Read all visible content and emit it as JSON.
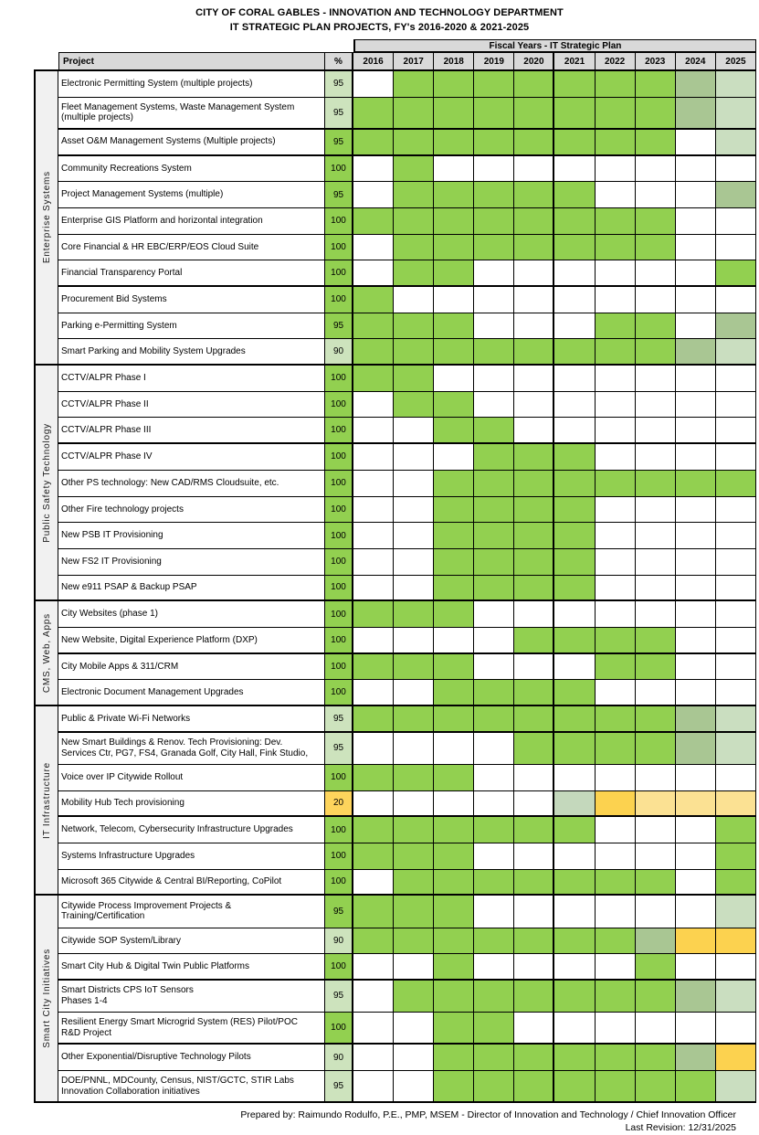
{
  "title": {
    "line1": "CITY OF CORAL GABLES - INNOVATION AND TECHNOLOGY DEPARTMENT",
    "line2": "IT STRATEGIC PLAN PROJECTS, FY's 2016-2020 & 2021-2025"
  },
  "header": {
    "fiscal_band": "Fiscal Years - IT Strategic Plan",
    "project_col": "Project",
    "pct_col": "%",
    "years": [
      "2016",
      "2017",
      "2018",
      "2019",
      "2020",
      "2021",
      "2022",
      "2023",
      "2024",
      "2025"
    ]
  },
  "colors": {
    "cell": {
      "g": "#92d050",
      "m": "#a9c693",
      "p": "#cadec0",
      "gg": "#c4d8bc",
      "y": "#fcd24f",
      "py": "#fbe193"
    },
    "pct": {
      "green": "#92d050",
      "pale": "#cde3bd",
      "yellow": "#fdd45c"
    },
    "header_bg": "#d9d9d9",
    "group_bg": "#f1f1f1",
    "grid_line": "#000000"
  },
  "groups": [
    {
      "label": "Enterprise Systems",
      "rows": [
        {
          "name": "Electronic Permitting System (multiple projects)",
          "pct": "95",
          "pct_color": "pale",
          "two_line": false,
          "thick_bottom": false,
          "cells": [
            "",
            "g",
            "g",
            "g",
            "g",
            "g",
            "g",
            "g",
            "m",
            "p"
          ]
        },
        {
          "name": "Fleet Management Systems, Waste Management System\n(multiple projects)",
          "pct": "95",
          "pct_color": "pale",
          "two_line": true,
          "thick_bottom": true,
          "cells": [
            "g",
            "g",
            "g",
            "g",
            "g",
            "g",
            "g",
            "g",
            "m",
            "p"
          ]
        },
        {
          "name": "Asset O&M Management Systems (Multiple projects)",
          "pct": "95",
          "pct_color": "green",
          "two_line": false,
          "thick_bottom": true,
          "cells": [
            "g",
            "g",
            "g",
            "g",
            "g",
            "g",
            "g",
            "g",
            "",
            "p"
          ]
        },
        {
          "name": "Community Recreations System",
          "pct": "100",
          "pct_color": "green",
          "two_line": false,
          "thick_bottom": false,
          "cells": [
            "",
            "g",
            "",
            "",
            "",
            "",
            "",
            "",
            "",
            ""
          ]
        },
        {
          "name": "Project Management Systems (multiple)",
          "pct": "95",
          "pct_color": "green",
          "two_line": false,
          "thick_bottom": false,
          "cells": [
            "",
            "g",
            "g",
            "g",
            "g",
            "g",
            "",
            "",
            "",
            "m"
          ]
        },
        {
          "name": "Enterprise GIS Platform and horizontal integration",
          "pct": "100",
          "pct_color": "green",
          "two_line": false,
          "thick_bottom": false,
          "cells": [
            "g",
            "g",
            "g",
            "g",
            "g",
            "g",
            "g",
            "g",
            "",
            ""
          ]
        },
        {
          "name": "Core Financial & HR EBC/ERP/EOS Cloud Suite",
          "pct": "100",
          "pct_color": "green",
          "two_line": false,
          "thick_bottom": false,
          "cells": [
            "",
            "g",
            "g",
            "g",
            "g",
            "g",
            "g",
            "g",
            "",
            ""
          ]
        },
        {
          "name": "Financial Transparency Portal",
          "pct": "100",
          "pct_color": "green",
          "two_line": false,
          "thick_bottom": true,
          "cells": [
            "",
            "g",
            "g",
            "",
            "",
            "",
            "",
            "",
            "",
            "g"
          ]
        },
        {
          "name": "Procurement Bid Systems",
          "pct": "100",
          "pct_color": "green",
          "two_line": false,
          "thick_bottom": false,
          "cells": [
            "g",
            "",
            "",
            "",
            "",
            "",
            "",
            "",
            "",
            ""
          ]
        },
        {
          "name": "Parking e-Permitting System",
          "pct": "95",
          "pct_color": "green",
          "two_line": false,
          "thick_bottom": false,
          "cells": [
            "g",
            "g",
            "g",
            "",
            "",
            "",
            "g",
            "g",
            "",
            "m"
          ]
        },
        {
          "name": "Smart Parking and Mobility System Upgrades",
          "pct": "90",
          "pct_color": "pale",
          "two_line": false,
          "thick_bottom": true,
          "cells": [
            "g",
            "g",
            "g",
            "g",
            "g",
            "g",
            "g",
            "g",
            "m",
            "p"
          ]
        }
      ]
    },
    {
      "label": "Public Safety Technology",
      "rows": [
        {
          "name": "CCTV/ALPR Phase I",
          "pct": "100",
          "pct_color": "green",
          "two_line": false,
          "thick_bottom": false,
          "cells": [
            "g",
            "g",
            "",
            "",
            "",
            "",
            "",
            "",
            "",
            ""
          ]
        },
        {
          "name": "CCTV/ALPR Phase II",
          "pct": "100",
          "pct_color": "green",
          "two_line": false,
          "thick_bottom": false,
          "cells": [
            "",
            "g",
            "g",
            "",
            "",
            "",
            "",
            "",
            "",
            ""
          ]
        },
        {
          "name": "CCTV/ALPR Phase III",
          "pct": "100",
          "pct_color": "green",
          "two_line": false,
          "thick_bottom": true,
          "cells": [
            "",
            "",
            "g",
            "g",
            "",
            "",
            "",
            "",
            "",
            ""
          ]
        },
        {
          "name": "CCTV/ALPR Phase IV",
          "pct": "100",
          "pct_color": "green",
          "two_line": false,
          "thick_bottom": false,
          "cells": [
            "",
            "",
            "",
            "g",
            "g",
            "g",
            "",
            "",
            "",
            ""
          ]
        },
        {
          "name": "Other PS technology: New CAD/RMS Cloudsuite, etc.",
          "pct": "100",
          "pct_color": "green",
          "two_line": false,
          "thick_bottom": false,
          "cells": [
            "",
            "",
            "g",
            "g",
            "g",
            "g",
            "g",
            "g",
            "g",
            "g"
          ]
        },
        {
          "name": "Other Fire technology projects",
          "pct": "100",
          "pct_color": "green",
          "two_line": false,
          "thick_bottom": false,
          "cells": [
            "",
            "",
            "g",
            "g",
            "g",
            "g",
            "",
            "",
            "",
            ""
          ]
        },
        {
          "name": "New PSB IT Provisioning",
          "pct": "100",
          "pct_color": "green",
          "two_line": false,
          "thick_bottom": false,
          "cells": [
            "",
            "",
            "g",
            "g",
            "g",
            "g",
            "",
            "",
            "",
            ""
          ]
        },
        {
          "name": "New FS2 IT Provisioning",
          "pct": "100",
          "pct_color": "green",
          "two_line": false,
          "thick_bottom": false,
          "cells": [
            "",
            "",
            "g",
            "g",
            "g",
            "g",
            "",
            "",
            "",
            ""
          ]
        },
        {
          "name": "New e911 PSAP & Backup PSAP",
          "pct": "100",
          "pct_color": "green",
          "two_line": false,
          "thick_bottom": true,
          "cells": [
            "",
            "",
            "g",
            "g",
            "g",
            "g",
            "",
            "",
            "",
            ""
          ]
        }
      ]
    },
    {
      "label": "CMS, Web, Apps",
      "rows": [
        {
          "name": "City Websites (phase 1)",
          "pct": "100",
          "pct_color": "green",
          "two_line": false,
          "thick_bottom": false,
          "cells": [
            "g",
            "g",
            "g",
            "",
            "",
            "",
            "",
            "",
            "",
            ""
          ]
        },
        {
          "name": "New Website, Digital Experience Platform (DXP)",
          "pct": "100",
          "pct_color": "green",
          "two_line": false,
          "thick_bottom": true,
          "cells": [
            "",
            "",
            "",
            "",
            "g",
            "g",
            "g",
            "g",
            "",
            ""
          ]
        },
        {
          "name": "City Mobile Apps & 311/CRM",
          "pct": "100",
          "pct_color": "green",
          "two_line": false,
          "thick_bottom": false,
          "cells": [
            "g",
            "g",
            "g",
            "",
            "",
            "",
            "g",
            "g",
            "",
            ""
          ]
        },
        {
          "name": "Electronic Document Management Upgrades",
          "pct": "100",
          "pct_color": "green",
          "two_line": false,
          "thick_bottom": true,
          "cells": [
            "",
            "",
            "g",
            "g",
            "g",
            "g",
            "",
            "",
            "",
            ""
          ]
        }
      ]
    },
    {
      "label": "IT Infrastructure",
      "rows": [
        {
          "name": "Public & Private Wi-Fi Networks",
          "pct": "95",
          "pct_color": "pale",
          "two_line": false,
          "thick_bottom": true,
          "cells": [
            "g",
            "g",
            "g",
            "g",
            "g",
            "g",
            "g",
            "g",
            "m",
            "p"
          ]
        },
        {
          "name": "New Smart Buildings & Renov. Tech Provisioning: Dev.\nServices Ctr, PG7, FS4, Granada Golf, City Hall, Fink Studio,",
          "pct": "95",
          "pct_color": "pale",
          "two_line": true,
          "thick_bottom": false,
          "cells": [
            "",
            "",
            "",
            "",
            "g",
            "g",
            "g",
            "g",
            "m",
            "p"
          ]
        },
        {
          "name": "Voice over IP Citywide Rollout",
          "pct": "100",
          "pct_color": "green",
          "two_line": false,
          "thick_bottom": false,
          "cells": [
            "g",
            "g",
            "g",
            "",
            "",
            "",
            "",
            "",
            "",
            ""
          ]
        },
        {
          "name": "Mobility Hub Tech provisioning",
          "pct": "20",
          "pct_color": "yellow",
          "two_line": false,
          "thick_bottom": true,
          "cells": [
            "",
            "",
            "",
            "",
            "",
            "gg",
            "y",
            "py",
            "py",
            "py"
          ]
        },
        {
          "name": "Network, Telecom, Cybersecurity Infrastructure Upgrades",
          "pct": "100",
          "pct_color": "green",
          "two_line": false,
          "thick_bottom": false,
          "cells": [
            "g",
            "g",
            "g",
            "g",
            "g",
            "g",
            "",
            "",
            "",
            "g"
          ]
        },
        {
          "name": "Systems Infrastructure Upgrades",
          "pct": "100",
          "pct_color": "green",
          "two_line": false,
          "thick_bottom": false,
          "cells": [
            "g",
            "g",
            "g",
            "",
            "",
            "",
            "",
            "",
            "",
            "g"
          ]
        },
        {
          "name": "Microsoft 365 Citywide & Central BI/Reporting, CoPilot",
          "pct": "100",
          "pct_color": "green",
          "two_line": false,
          "thick_bottom": true,
          "cells": [
            "",
            "g",
            "g",
            "g",
            "g",
            "g",
            "g",
            "g",
            "",
            "g"
          ]
        }
      ]
    },
    {
      "label": "Smart City Initiatives",
      "rows": [
        {
          "name": "Citywide Process Improvement Projects &\nTraining/Certification",
          "pct": "95",
          "pct_color": "green",
          "two_line": true,
          "thick_bottom": false,
          "cells": [
            "g",
            "g",
            "g",
            "",
            "",
            "",
            "",
            "",
            "",
            "p"
          ]
        },
        {
          "name": "Citywide SOP System/Library",
          "pct": "90",
          "pct_color": "pale",
          "two_line": false,
          "thick_bottom": false,
          "cells": [
            "g",
            "g",
            "g",
            "g",
            "g",
            "g",
            "g",
            "m",
            "y",
            "y"
          ]
        },
        {
          "name": "Smart City Hub & Digital Twin Public Platforms",
          "pct": "100",
          "pct_color": "green",
          "two_line": false,
          "thick_bottom": true,
          "cells": [
            "",
            "",
            "g",
            "",
            "",
            "",
            "",
            "g",
            "",
            ""
          ]
        },
        {
          "name": "Smart Districts CPS IoT Sensors\nPhases 1-4",
          "pct": "95",
          "pct_color": "pale",
          "two_line": true,
          "thick_bottom": false,
          "cells": [
            "",
            "g",
            "g",
            "g",
            "g",
            "g",
            "g",
            "g",
            "m",
            "p"
          ]
        },
        {
          "name": "Resilient Energy Smart Microgrid System (RES) Pilot/POC\nR&D Project",
          "pct": "100",
          "pct_color": "green",
          "two_line": true,
          "thick_bottom": true,
          "cells": [
            "",
            "",
            "g",
            "g",
            "",
            "",
            "",
            "",
            "",
            ""
          ]
        },
        {
          "name": "Other Exponential/Disruptive Technology Pilots",
          "pct": "90",
          "pct_color": "pale",
          "two_line": false,
          "thick_bottom": false,
          "cells": [
            "",
            "",
            "g",
            "g",
            "g",
            "g",
            "g",
            "g",
            "m",
            "y"
          ]
        },
        {
          "name": "DOE/PNNL, MDCounty, Census, NIST/GCTC, STIR Labs\nInnovation Collaboration initiatives",
          "pct": "95",
          "pct_color": "pale",
          "two_line": true,
          "thick_bottom": true,
          "cells": [
            "",
            "",
            "g",
            "g",
            "g",
            "g",
            "g",
            "g",
            "g",
            "p"
          ]
        }
      ]
    }
  ],
  "footer": {
    "prepared": "Prepared by: Raimundo Rodulfo, P.E., PMP, MSEM  -  Director of Innovation and Technology / Chief Innovation Officer",
    "revision": "Last Revision: 12/31/2025"
  }
}
